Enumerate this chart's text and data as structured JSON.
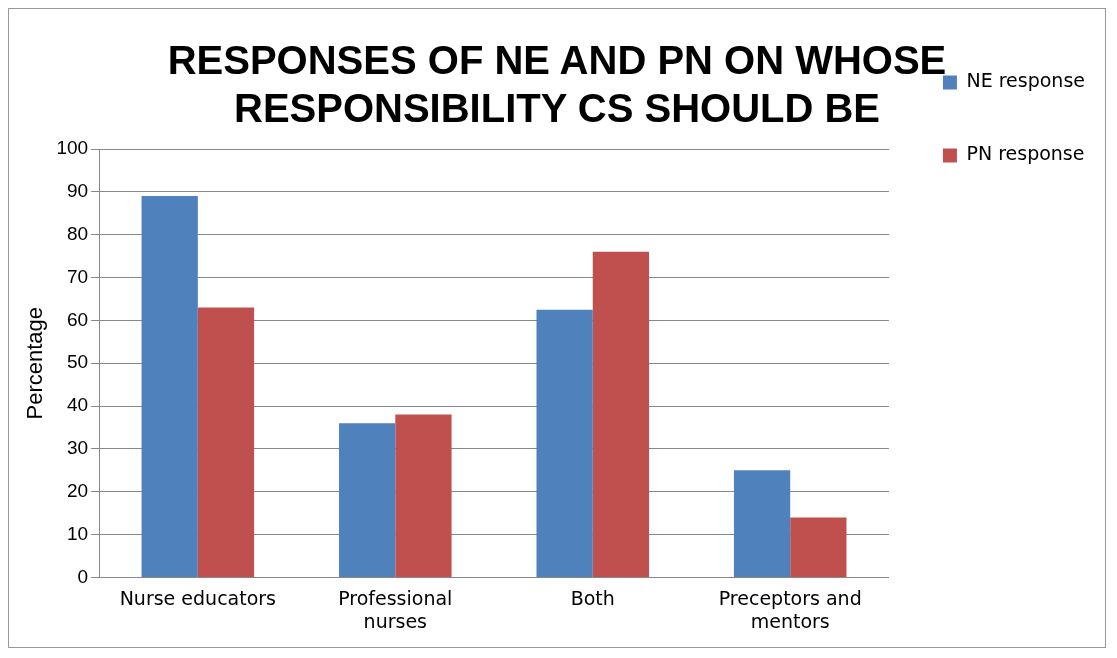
{
  "chart_data": {
    "type": "bar",
    "title": "RESPONSES OF NE AND PN ON WHOSE RESPONSIBILITY CS SHOULD BE",
    "ylabel": "Percentage",
    "categories": [
      "Nurse educators",
      "Professional nurses",
      "Both",
      "Preceptors and mentors"
    ],
    "series": [
      {
        "name": "NE response",
        "color": "#4f81bd",
        "values": [
          89,
          36,
          62.5,
          25
        ]
      },
      {
        "name": "PN response",
        "color": "#c0504d",
        "values": [
          63,
          38,
          76,
          14
        ]
      }
    ],
    "ylim": [
      0,
      100
    ],
    "yticks": [
      0,
      10,
      20,
      30,
      40,
      50,
      60,
      70,
      80,
      90,
      100
    ],
    "grid": "y",
    "legend": "right"
  }
}
